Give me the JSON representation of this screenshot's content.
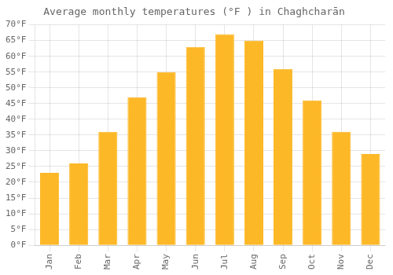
{
  "chart_data": {
    "type": "bar",
    "title": "Average monthly temperatures (°F ) in Chaghcharān",
    "categories": [
      "Jan",
      "Feb",
      "Mar",
      "Apr",
      "May",
      "Jun",
      "Jul",
      "Aug",
      "Sep",
      "Oct",
      "Nov",
      "Dec"
    ],
    "values": [
      23,
      26,
      36,
      47,
      55,
      63,
      67,
      65,
      56,
      46,
      36,
      29
    ],
    "color": "#FDB827",
    "ylim": [
      0,
      70
    ],
    "yticks": [
      {
        "value": 0,
        "label": "0°F"
      },
      {
        "value": 5,
        "label": "5°F"
      },
      {
        "value": 10,
        "label": "10°F"
      },
      {
        "value": 15,
        "label": "15°F"
      },
      {
        "value": 20,
        "label": "20°F"
      },
      {
        "value": 25,
        "label": "25°F"
      },
      {
        "value": 30,
        "label": "30°F"
      },
      {
        "value": 35,
        "label": "35°F"
      },
      {
        "value": 40,
        "label": "40°F"
      },
      {
        "value": 45,
        "label": "45°F"
      },
      {
        "value": 50,
        "label": "50°F"
      },
      {
        "value": 55,
        "label": "55°F"
      },
      {
        "value": 60,
        "label": "60°F"
      },
      {
        "value": 65,
        "label": "65°F"
      },
      {
        "value": 70,
        "label": "70°F"
      }
    ],
    "grid": true
  }
}
